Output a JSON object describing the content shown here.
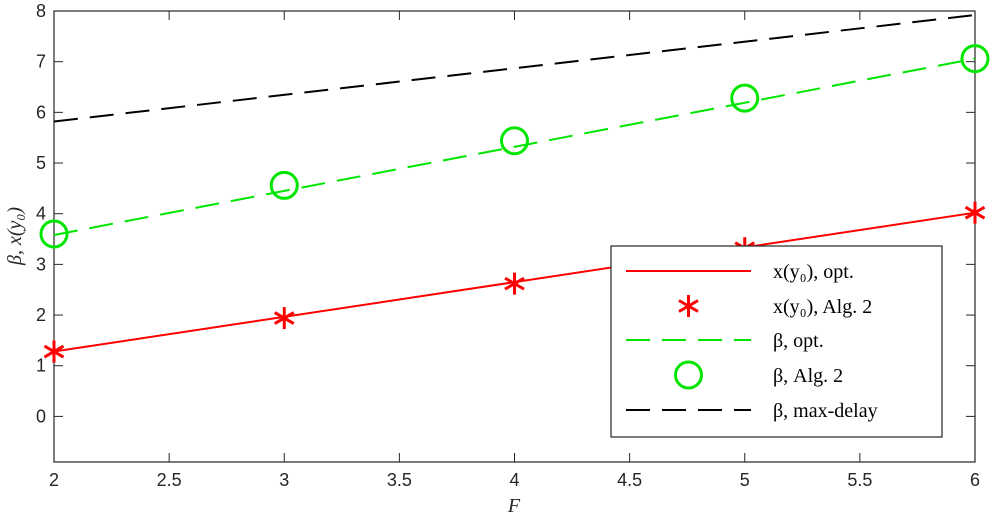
{
  "chart_data": {
    "type": "line",
    "xlabel": "F",
    "ylabel": "β, x(y₀)",
    "xlim": [
      2,
      6
    ],
    "ylim": [
      -0.9,
      8
    ],
    "xticks": [
      2,
      2.5,
      3,
      3.5,
      4,
      4.5,
      5,
      5.5,
      6
    ],
    "xtick_labels": [
      "2",
      "2.5",
      "3",
      "3.5",
      "4",
      "4.5",
      "5",
      "5.5",
      "6"
    ],
    "yticks": [
      0,
      1,
      2,
      3,
      4,
      5,
      6,
      7,
      8
    ],
    "ytick_labels": [
      "0",
      "1",
      "2",
      "3",
      "4",
      "5",
      "6",
      "7",
      "8"
    ],
    "grid": false,
    "legend_position": "bottom-right",
    "series": [
      {
        "name": "x(y₀), opt.",
        "style": "solid-line",
        "color": "#ff0000",
        "x": [
          2,
          6
        ],
        "y": [
          1.28,
          4.02
        ]
      },
      {
        "name": "x(y₀), Alg. 2",
        "style": "asterisk-markers",
        "color": "#ff0000",
        "x": [
          2,
          3,
          4,
          5,
          6
        ],
        "y": [
          1.28,
          1.94,
          2.62,
          3.32,
          4.02
        ]
      },
      {
        "name": "β, opt.",
        "style": "dashed-line",
        "color": "#00e600",
        "x": [
          2,
          6
        ],
        "y": [
          3.58,
          7.06
        ]
      },
      {
        "name": "β, Alg. 2",
        "style": "circle-markers",
        "color": "#00e600",
        "x": [
          2,
          3,
          4,
          5,
          6
        ],
        "y": [
          3.6,
          4.56,
          5.44,
          6.28,
          7.06
        ]
      },
      {
        "name": "β, max-delay",
        "style": "dashed-line",
        "color": "#000000",
        "x": [
          2,
          6
        ],
        "y": [
          5.82,
          7.92
        ]
      }
    ]
  }
}
